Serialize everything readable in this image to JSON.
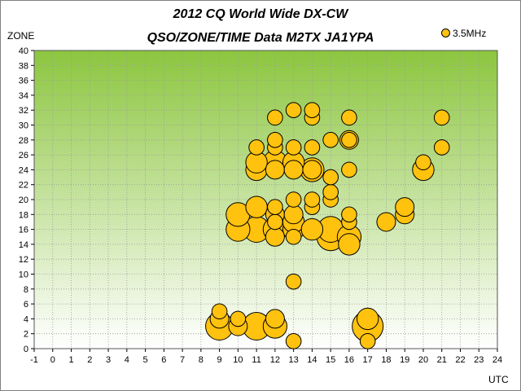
{
  "chart_data": {
    "type": "scatter",
    "title": "2012 CQ World Wide DX-CW",
    "subtitle": "QSO/ZONE/TIME Data M2TX JA1YPA",
    "xlabel": "UTC",
    "ylabel": "ZONE",
    "xlim": [
      -1,
      24
    ],
    "ylim": [
      0,
      40
    ],
    "xticks": [
      -1,
      0,
      1,
      2,
      3,
      4,
      5,
      6,
      7,
      8,
      9,
      10,
      11,
      12,
      13,
      14,
      15,
      16,
      17,
      18,
      19,
      20,
      21,
      22,
      23,
      24
    ],
    "yticks": [
      0,
      2,
      4,
      6,
      8,
      10,
      12,
      14,
      16,
      18,
      20,
      22,
      24,
      26,
      28,
      30,
      32,
      34,
      36,
      38,
      40
    ],
    "grid": true,
    "legend_position": "top-right",
    "marker_color": "#ffc20e",
    "plot_bg_top": "#8cc63f",
    "plot_bg_bottom": "#ffffff",
    "series": [
      {
        "name": "3.5MHz",
        "points": [
          {
            "x": 9,
            "y": 3,
            "size": 3
          },
          {
            "x": 9,
            "y": 4,
            "size": 1
          },
          {
            "x": 9,
            "y": 5,
            "size": 0.5
          },
          {
            "x": 10,
            "y": 3,
            "size": 1
          },
          {
            "x": 10,
            "y": 4,
            "size": 0.5
          },
          {
            "x": 10,
            "y": 16,
            "size": 2
          },
          {
            "x": 10,
            "y": 18,
            "size": 2
          },
          {
            "x": 11,
            "y": 3,
            "size": 3
          },
          {
            "x": 11,
            "y": 16,
            "size": 2.5
          },
          {
            "x": 11,
            "y": 19,
            "size": 1.5
          },
          {
            "x": 11,
            "y": 24,
            "size": 1.5
          },
          {
            "x": 11,
            "y": 25,
            "size": 1.5
          },
          {
            "x": 11,
            "y": 27,
            "size": 0.5
          },
          {
            "x": 12,
            "y": 3,
            "size": 2
          },
          {
            "x": 12,
            "y": 4,
            "size": 1
          },
          {
            "x": 12,
            "y": 15,
            "size": 1
          },
          {
            "x": 12,
            "y": 16,
            "size": 2
          },
          {
            "x": 12,
            "y": 17,
            "size": 0.5
          },
          {
            "x": 12,
            "y": 18,
            "size": 1
          },
          {
            "x": 12,
            "y": 19,
            "size": 0.5
          },
          {
            "x": 12,
            "y": 24,
            "size": 1
          },
          {
            "x": 12,
            "y": 25,
            "size": 2
          },
          {
            "x": 12,
            "y": 27,
            "size": 0.5
          },
          {
            "x": 12,
            "y": 28,
            "size": 0.5
          },
          {
            "x": 12,
            "y": 31,
            "size": 0.5
          },
          {
            "x": 13,
            "y": 1,
            "size": 0.5
          },
          {
            "x": 13,
            "y": 9,
            "size": 0.5
          },
          {
            "x": 13,
            "y": 15,
            "size": 0.5
          },
          {
            "x": 13,
            "y": 16,
            "size": 1.5
          },
          {
            "x": 13,
            "y": 17,
            "size": 1.5
          },
          {
            "x": 13,
            "y": 18,
            "size": 1
          },
          {
            "x": 13,
            "y": 20,
            "size": 0.5
          },
          {
            "x": 13,
            "y": 24,
            "size": 1
          },
          {
            "x": 13,
            "y": 25,
            "size": 1.5
          },
          {
            "x": 13,
            "y": 27,
            "size": 0.5
          },
          {
            "x": 13,
            "y": 32,
            "size": 0.5
          },
          {
            "x": 14,
            "y": 16,
            "size": 1.5
          },
          {
            "x": 14,
            "y": 19,
            "size": 0.5
          },
          {
            "x": 14,
            "y": 20,
            "size": 0.5
          },
          {
            "x": 14,
            "y": 24,
            "size": 2
          },
          {
            "x": 14,
            "y": 24,
            "size": 1
          },
          {
            "x": 14,
            "y": 27,
            "size": 0.5
          },
          {
            "x": 14,
            "y": 31,
            "size": 0.5
          },
          {
            "x": 14,
            "y": 32,
            "size": 0.5
          },
          {
            "x": 15,
            "y": 15,
            "size": 3
          },
          {
            "x": 15,
            "y": 16,
            "size": 2.5
          },
          {
            "x": 15,
            "y": 20,
            "size": 0.5
          },
          {
            "x": 15,
            "y": 21,
            "size": 0.5
          },
          {
            "x": 15,
            "y": 23,
            "size": 0.5
          },
          {
            "x": 15,
            "y": 28,
            "size": 0.5
          },
          {
            "x": 16,
            "y": 14,
            "size": 1.5
          },
          {
            "x": 16,
            "y": 15,
            "size": 2
          },
          {
            "x": 16,
            "y": 17,
            "size": 0.5
          },
          {
            "x": 16,
            "y": 18,
            "size": 0.5
          },
          {
            "x": 16,
            "y": 24,
            "size": 0.5
          },
          {
            "x": 16,
            "y": 28,
            "size": 1
          },
          {
            "x": 16,
            "y": 28,
            "size": 0.5
          },
          {
            "x": 16,
            "y": 31,
            "size": 0.5
          },
          {
            "x": 17,
            "y": 1,
            "size": 0.5
          },
          {
            "x": 17,
            "y": 3,
            "size": 4
          },
          {
            "x": 17,
            "y": 4,
            "size": 1.5
          },
          {
            "x": 18,
            "y": 17,
            "size": 1
          },
          {
            "x": 19,
            "y": 18,
            "size": 1
          },
          {
            "x": 19,
            "y": 19,
            "size": 1
          },
          {
            "x": 20,
            "y": 24,
            "size": 1.5
          },
          {
            "x": 20,
            "y": 25,
            "size": 0.5
          },
          {
            "x": 21,
            "y": 27,
            "size": 0.5
          },
          {
            "x": 21,
            "y": 31,
            "size": 0.5
          }
        ]
      }
    ]
  }
}
